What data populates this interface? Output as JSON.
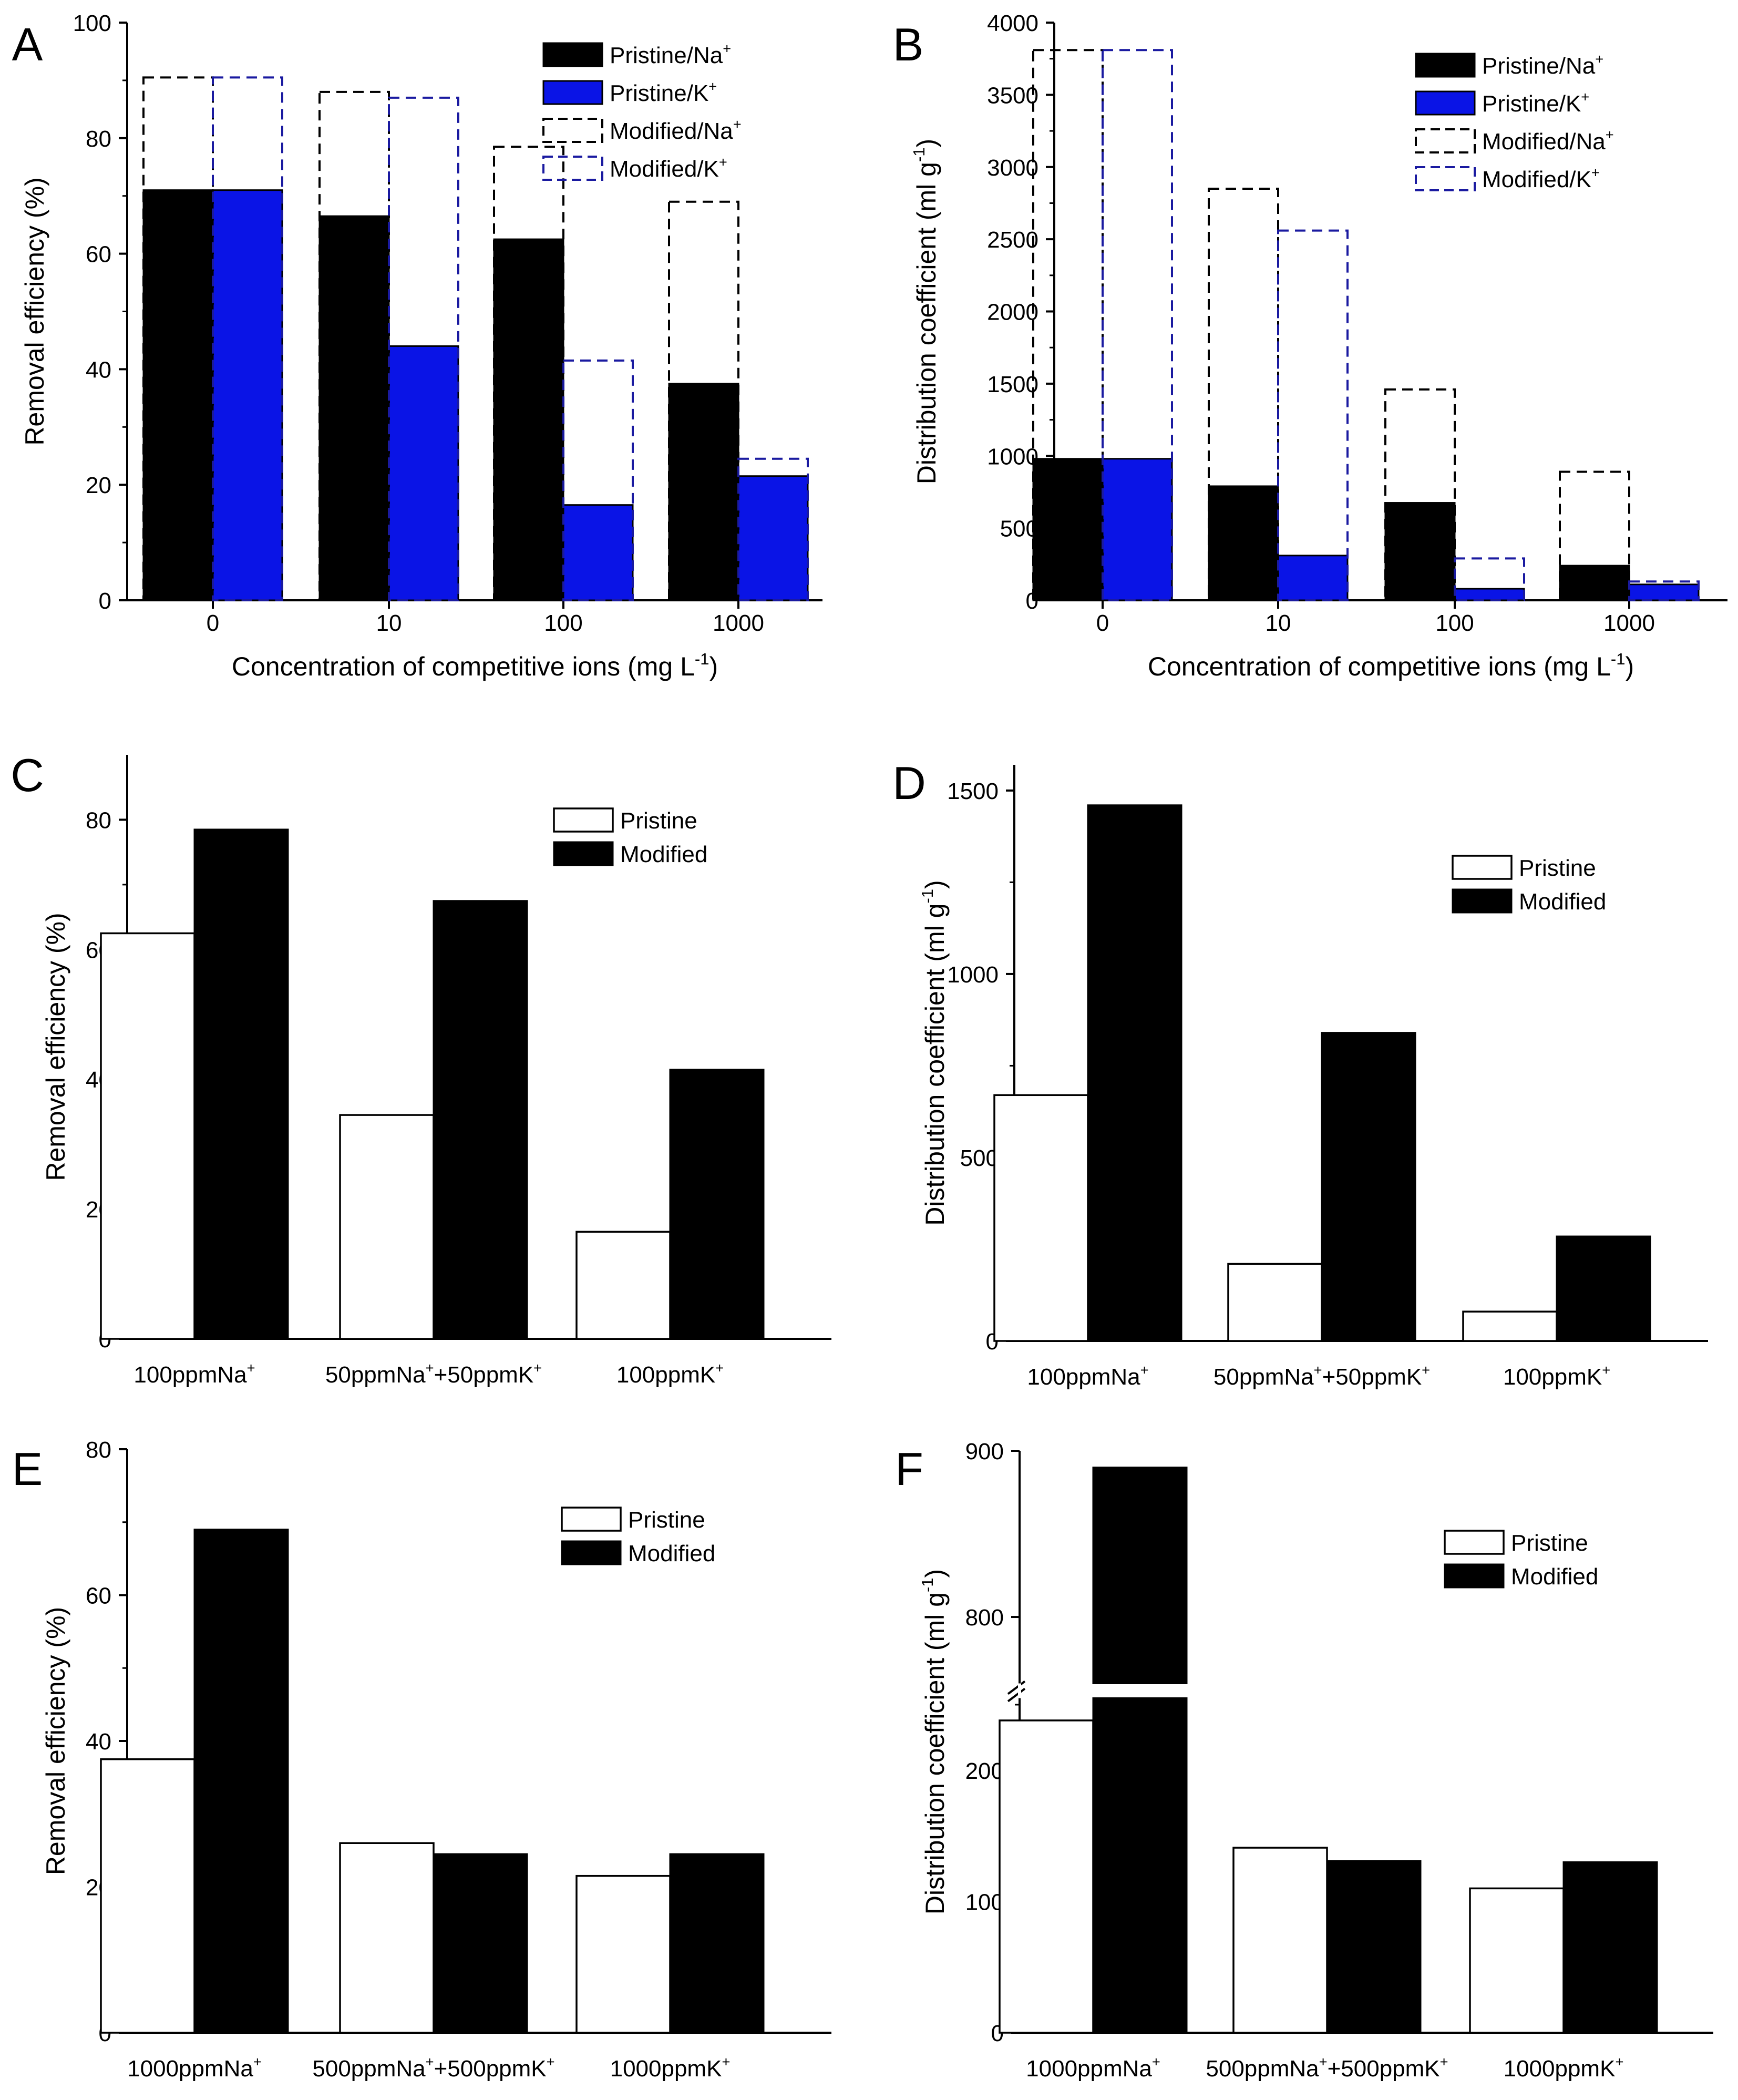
{
  "chart_data": [
    {
      "panel": "A",
      "type": "bar",
      "ylabel": "Removal efficiency (%)",
      "xlabel": "Concentration of competitive ions (mg L⁻¹)",
      "categories": [
        "0",
        "10",
        "100",
        "1000"
      ],
      "ylim": [
        0,
        100
      ],
      "yticks": [
        0,
        20,
        40,
        60,
        80,
        100
      ],
      "series": [
        {
          "name": "Pristine/Na⁺",
          "style": "filled",
          "color": "#000000",
          "slot": 0,
          "values": [
            71,
            66.5,
            62.5,
            37.5
          ]
        },
        {
          "name": "Pristine/K⁺",
          "style": "filled",
          "color": "#0a14e6",
          "slot": 1,
          "values": [
            71,
            44,
            16.5,
            21.5
          ]
        },
        {
          "name": "Modified/Na⁺",
          "style": "dashed",
          "color": "#000000",
          "slot": 0,
          "values": [
            90.5,
            88,
            78.5,
            69
          ]
        },
        {
          "name": "Modified/K⁺",
          "style": "dashed",
          "color": "#1a1aa0",
          "slot": 1,
          "values": [
            90.5,
            87,
            41.5,
            24.5
          ]
        }
      ],
      "legend": "top-right"
    },
    {
      "panel": "B",
      "type": "bar",
      "ylabel": "Distribution coefficient (ml g⁻¹)",
      "xlabel": "Concentration of competitive ions (mg L⁻¹)",
      "categories": [
        "0",
        "10",
        "100",
        "1000"
      ],
      "ylim": [
        0,
        4000
      ],
      "yticks": [
        0,
        500,
        1000,
        1500,
        2000,
        2500,
        3000,
        3500,
        4000
      ],
      "series": [
        {
          "name": "Pristine/Na⁺",
          "style": "filled",
          "color": "#000000",
          "slot": 0,
          "values": [
            980,
            790,
            675,
            240
          ]
        },
        {
          "name": "Pristine/K⁺",
          "style": "filled",
          "color": "#0a14e6",
          "slot": 1,
          "values": [
            980,
            310,
            80,
            110
          ]
        },
        {
          "name": "Modified/Na⁺",
          "style": "dashed",
          "color": "#000000",
          "slot": 0,
          "values": [
            3810,
            2850,
            1460,
            890
          ]
        },
        {
          "name": "Modified/K⁺",
          "style": "dashed",
          "color": "#1a1aa0",
          "slot": 1,
          "values": [
            3810,
            2560,
            290,
            130
          ]
        }
      ],
      "legend": "top-right"
    },
    {
      "panel": "C",
      "type": "bar",
      "ylabel": "Removal efficiency (%)",
      "xlabel": "",
      "categories": [
        "100ppmNa⁺",
        "50ppmNa⁺+50ppmK⁺",
        "100ppmK⁺"
      ],
      "ylim": [
        0,
        90
      ],
      "yticks": [
        0,
        20,
        40,
        60,
        80
      ],
      "series": [
        {
          "name": "Pristine",
          "style": "open",
          "slot": 0,
          "values": [
            62.5,
            34.5,
            16.5
          ]
        },
        {
          "name": "Modified",
          "style": "filled",
          "color": "#000000",
          "slot": 1,
          "values": [
            78.5,
            67.5,
            41.5
          ]
        }
      ],
      "legend": "top-right"
    },
    {
      "panel": "D",
      "type": "bar",
      "ylabel": "Distribution coefficient (ml g⁻¹)",
      "xlabel": "",
      "categories": [
        "100ppmNa⁺",
        "50ppmNa⁺+50ppmK⁺",
        "100ppmK⁺"
      ],
      "ylim": [
        0,
        1570
      ],
      "yticks": [
        0,
        500,
        1000,
        1500
      ],
      "series": [
        {
          "name": "Pristine",
          "style": "open",
          "slot": 0,
          "values": [
            670,
            210,
            80
          ]
        },
        {
          "name": "Modified",
          "style": "filled",
          "color": "#000000",
          "slot": 1,
          "values": [
            1460,
            840,
            285
          ]
        }
      ],
      "legend": "top-right"
    },
    {
      "panel": "E",
      "type": "bar",
      "ylabel": "Removal efficiency (%)",
      "xlabel": "",
      "categories": [
        "1000ppmNa⁺",
        "500ppmNa⁺+500ppmK⁺",
        "1000ppmK⁺"
      ],
      "ylim": [
        0,
        80
      ],
      "yticks": [
        0,
        20,
        40,
        60,
        80
      ],
      "series": [
        {
          "name": "Pristine",
          "style": "open",
          "slot": 0,
          "values": [
            37.5,
            26,
            21.5
          ]
        },
        {
          "name": "Modified",
          "style": "filled",
          "color": "#000000",
          "slot": 1,
          "values": [
            69,
            24.5,
            24.5
          ]
        }
      ],
      "legend": "top-right"
    },
    {
      "panel": "F",
      "type": "bar",
      "ylabel": "Distribution coefficient (ml g⁻¹)",
      "xlabel": "",
      "categories": [
        "1000ppmNa⁺",
        "500ppmNa⁺+500ppmK⁺",
        "1000ppmK⁺"
      ],
      "broken_axis": {
        "lower": [
          0,
          255
        ],
        "upper": [
          760,
          900
        ]
      },
      "yticks": [
        0,
        100,
        200,
        800,
        900
      ],
      "series": [
        {
          "name": "Pristine",
          "style": "open",
          "slot": 0,
          "values": [
            238,
            141,
            110
          ]
        },
        {
          "name": "Modified",
          "style": "filled",
          "color": "#000000",
          "slot": 1,
          "values": [
            890,
            131,
            130
          ]
        }
      ],
      "legend": "top-right"
    }
  ]
}
